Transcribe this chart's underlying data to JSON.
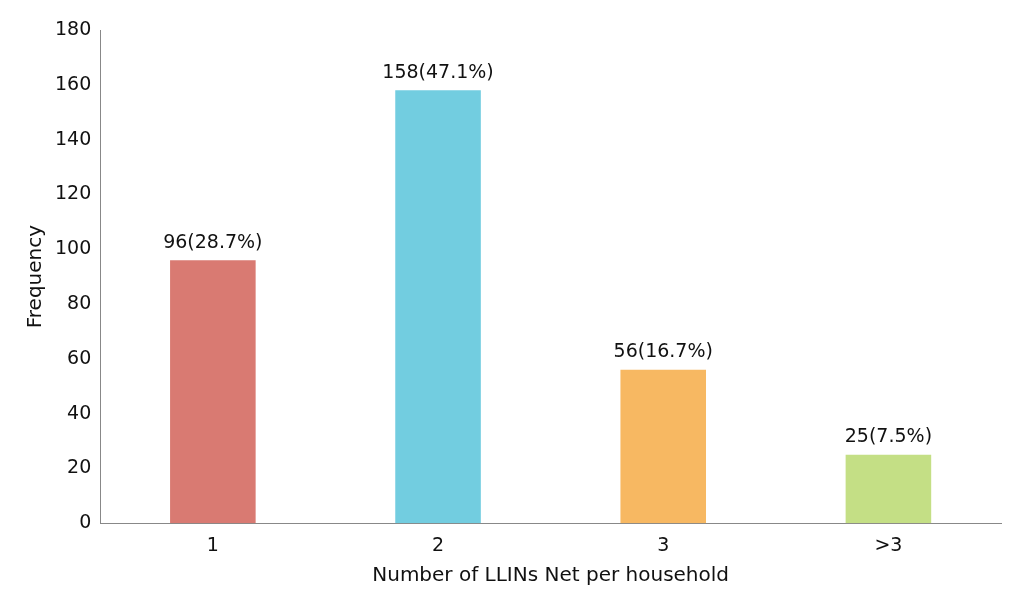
{
  "chart_data": {
    "type": "bar",
    "xlabel": "Number of LLINs Net per household",
    "ylabel": "Frequency",
    "categories": [
      "1",
      "2",
      "3",
      ">3"
    ],
    "values": [
      96,
      158,
      56,
      25
    ],
    "value_labels": [
      "96(28.7%)",
      "158(47.1%)",
      "56(16.7%)",
      "25(7.5%)"
    ],
    "colors": [
      "#d97a72",
      "#72cde0",
      "#f7b862",
      "#c4df85"
    ],
    "ylim": [
      0,
      180
    ],
    "yticks": [
      0,
      20,
      40,
      60,
      80,
      100,
      120,
      140,
      160,
      180
    ],
    "grid": false,
    "legend": false
  }
}
